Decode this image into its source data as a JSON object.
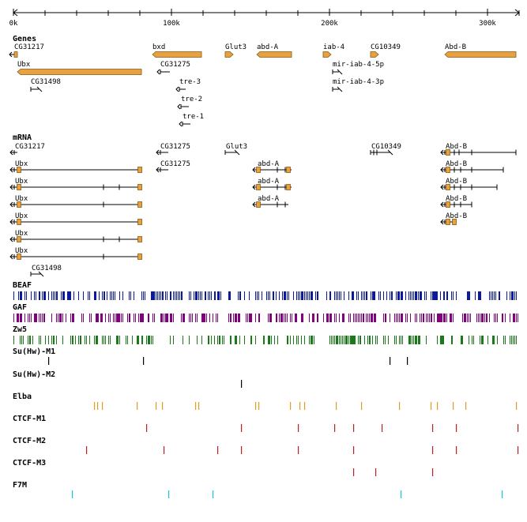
{
  "ruler": {
    "ticks": [
      {
        "pos": 0,
        "label": "0k"
      },
      {
        "pos": 100000,
        "label": "100k"
      },
      {
        "pos": 200000,
        "label": "200k"
      },
      {
        "pos": 300000,
        "label": "300k"
      }
    ],
    "min": 0,
    "max": 320000
  },
  "colors": {
    "gene": "#e8a040",
    "gene_stroke": "#8a5a10",
    "beaf": "#0a1a9a",
    "gaf": "#800080",
    "zw5": "#1a7a1a",
    "suhw": "#000000",
    "elba": "#e0a020",
    "ctcf": "#c02020",
    "f7m": "#10c8e0"
  },
  "sections": {
    "genes": "Genes",
    "mrna": "mRNA"
  },
  "genes": [
    {
      "label": "CG31217",
      "start": 500,
      "end": 2500,
      "strand": "-",
      "row": 0,
      "filled": true
    },
    {
      "label": "Ubx",
      "start": 2500,
      "end": 81000,
      "strand": "-",
      "row": 1,
      "filled": true
    },
    {
      "label": "CG31498",
      "start": 11000,
      "end": 15000,
      "strand": "+",
      "row": 2,
      "filled": false
    },
    {
      "label": "bxd",
      "start": 88000,
      "end": 119000,
      "strand": "-",
      "row": 0,
      "filled": true
    },
    {
      "label": "CG31275",
      "start": 93000,
      "end": 98000,
      "strand": "-",
      "row": 1,
      "filled": false
    },
    {
      "label": "tre-3",
      "start": 105000,
      "end": 108000,
      "strand": "-",
      "row": 2,
      "filled": false
    },
    {
      "label": "tre-2",
      "start": 106000,
      "end": 110000,
      "strand": "-",
      "row": 3,
      "filled": false
    },
    {
      "label": "tre-1",
      "start": 107000,
      "end": 111000,
      "strand": "-",
      "row": 4,
      "filled": false
    },
    {
      "label": "Glut3",
      "start": 134000,
      "end": 139000,
      "strand": "+",
      "row": 0,
      "filled": true
    },
    {
      "label": "abd-A",
      "start": 154000,
      "end": 176000,
      "strand": "-",
      "row": 0,
      "filled": true
    },
    {
      "label": "iab-4",
      "start": 196000,
      "end": 201000,
      "strand": "+",
      "row": 0,
      "filled": true
    },
    {
      "label": "mir-iab-4-5p",
      "start": 202000,
      "end": 205000,
      "strand": "+",
      "row": 1,
      "filled": false
    },
    {
      "label": "mir-iab-4-3p",
      "start": 202000,
      "end": 205000,
      "strand": "+",
      "row": 2,
      "filled": false
    },
    {
      "label": "CG10349",
      "start": 226000,
      "end": 231000,
      "strand": "+",
      "row": 0,
      "filled": true
    },
    {
      "label": "Abd-B",
      "start": 273000,
      "end": 318000,
      "strand": "-",
      "row": 0,
      "filled": true
    }
  ],
  "mrnas": [
    {
      "label": "CG31217",
      "start": 500,
      "end": 2500,
      "strand": "-",
      "row": 0,
      "exons": []
    },
    {
      "label": "Ubx",
      "start": 500,
      "end": 81000,
      "strand": "-",
      "row": 1,
      "exons": [
        3500,
        80000
      ]
    },
    {
      "label": "Ubx",
      "start": 500,
      "end": 81000,
      "strand": "-",
      "row": 2,
      "exons": [
        3500,
        80000
      ],
      "ticks": [
        57000,
        67000
      ]
    },
    {
      "label": "Ubx",
      "start": 500,
      "end": 81000,
      "strand": "-",
      "row": 3,
      "exons": [
        3500,
        80000
      ],
      "ticks": [
        57000
      ]
    },
    {
      "label": "Ubx",
      "start": 500,
      "end": 81000,
      "strand": "-",
      "row": 4,
      "exons": [
        3500,
        80000
      ]
    },
    {
      "label": "Ubx",
      "start": 500,
      "end": 81000,
      "strand": "-",
      "row": 5,
      "exons": [
        3500,
        80000
      ],
      "ticks": [
        57000,
        67000
      ]
    },
    {
      "label": "Ubx",
      "start": 500,
      "end": 81000,
      "strand": "-",
      "row": 6,
      "exons": [
        3500,
        80000
      ],
      "ticks": [
        57000
      ]
    },
    {
      "label": "CG31498",
      "start": 11000,
      "end": 15000,
      "strand": "+",
      "row": 7,
      "exons": []
    },
    {
      "label": "CG31275",
      "start": 93000,
      "end": 98000,
      "strand": "-",
      "row": 0,
      "exons": []
    },
    {
      "label": "CG31275",
      "start": 93000,
      "end": 98000,
      "strand": "-",
      "row": 1,
      "exons": []
    },
    {
      "label": "Glut3",
      "start": 134000,
      "end": 139000,
      "strand": "+",
      "row": 0,
      "exons": []
    },
    {
      "label": "abd-A",
      "start": 154000,
      "end": 176000,
      "strand": "-",
      "row": 1,
      "exons": [
        155000,
        174000
      ],
      "ticks": [
        167000,
        172000
      ]
    },
    {
      "label": "abd-A",
      "start": 154000,
      "end": 176000,
      "strand": "-",
      "row": 2,
      "exons": [
        155000,
        174000
      ],
      "ticks": [
        167000,
        172000
      ]
    },
    {
      "label": "abd-A",
      "start": 154000,
      "end": 174000,
      "strand": "-",
      "row": 3,
      "exons": [
        155000
      ],
      "ticks": [
        167000,
        172000
      ]
    },
    {
      "label": "CG10349",
      "start": 226000,
      "end": 236000,
      "strand": "+",
      "row": 0,
      "exons": [],
      "ticks": [
        228000,
        230000
      ]
    },
    {
      "label": "Abd-B",
      "start": 273000,
      "end": 318000,
      "strand": "-",
      "row": 0,
      "exons": [
        275000
      ],
      "ticks": [
        279000,
        282000,
        290000,
        318000
      ]
    },
    {
      "label": "Abd-B",
      "start": 273000,
      "end": 310000,
      "strand": "-",
      "row": 1,
      "exons": [
        275000
      ],
      "ticks": [
        279000,
        283000,
        290000,
        310000
      ]
    },
    {
      "label": "Abd-B",
      "start": 273000,
      "end": 306000,
      "strand": "-",
      "row": 2,
      "exons": [
        275000
      ],
      "ticks": [
        279000,
        283000,
        290000,
        306000
      ]
    },
    {
      "label": "Abd-B",
      "start": 273000,
      "end": 290000,
      "strand": "-",
      "row": 3,
      "exons": [
        275000
      ],
      "ticks": [
        279000,
        283000,
        290000
      ]
    },
    {
      "label": "Abd-B",
      "start": 273000,
      "end": 280000,
      "strand": "-",
      "row": 4,
      "exons": [
        275000,
        279000
      ]
    }
  ],
  "tracks": [
    {
      "name": "BEAF",
      "color_key": "beaf",
      "kind": "dense",
      "seed": 7,
      "density": 0.55
    },
    {
      "name": "GAF",
      "color_key": "gaf",
      "kind": "dense",
      "seed": 13,
      "density": 0.6
    },
    {
      "name": "Zw5",
      "color_key": "zw5",
      "kind": "dense",
      "seed": 29,
      "density": 0.5
    },
    {
      "name": "Su(Hw)-M1",
      "color_key": "suhw",
      "kind": "sparse",
      "sites": [
        22000,
        82000,
        238000,
        249000
      ]
    },
    {
      "name": "Su(Hw)-M2",
      "color_key": "suhw",
      "kind": "sparse",
      "sites": [
        144000
      ]
    },
    {
      "name": "Elba",
      "color_key": "elba",
      "kind": "sparse",
      "sites": [
        51000,
        53000,
        56000,
        78000,
        90000,
        94000,
        115000,
        117000,
        153000,
        155000,
        175000,
        181000,
        184000,
        204000,
        220000,
        244000,
        264000,
        268000,
        278000,
        286000,
        318000
      ]
    },
    {
      "name": "CTCF-M1",
      "color_key": "ctcf",
      "kind": "sparse",
      "sites": [
        84000,
        144000,
        180000,
        203000,
        215000,
        233000,
        265000,
        280000,
        319000
      ]
    },
    {
      "name": "CTCF-M2",
      "color_key": "ctcf",
      "kind": "sparse",
      "sites": [
        46000,
        95000,
        129000,
        144000,
        180000,
        215000,
        265000,
        280000,
        319000
      ]
    },
    {
      "name": "CTCF-M3",
      "color_key": "ctcf",
      "kind": "sparse",
      "sites": [
        215000,
        229000,
        265000
      ]
    },
    {
      "name": "F7M",
      "color_key": "f7m",
      "kind": "sparse",
      "sites": [
        37000,
        98000,
        126000,
        245000,
        309000
      ]
    }
  ]
}
